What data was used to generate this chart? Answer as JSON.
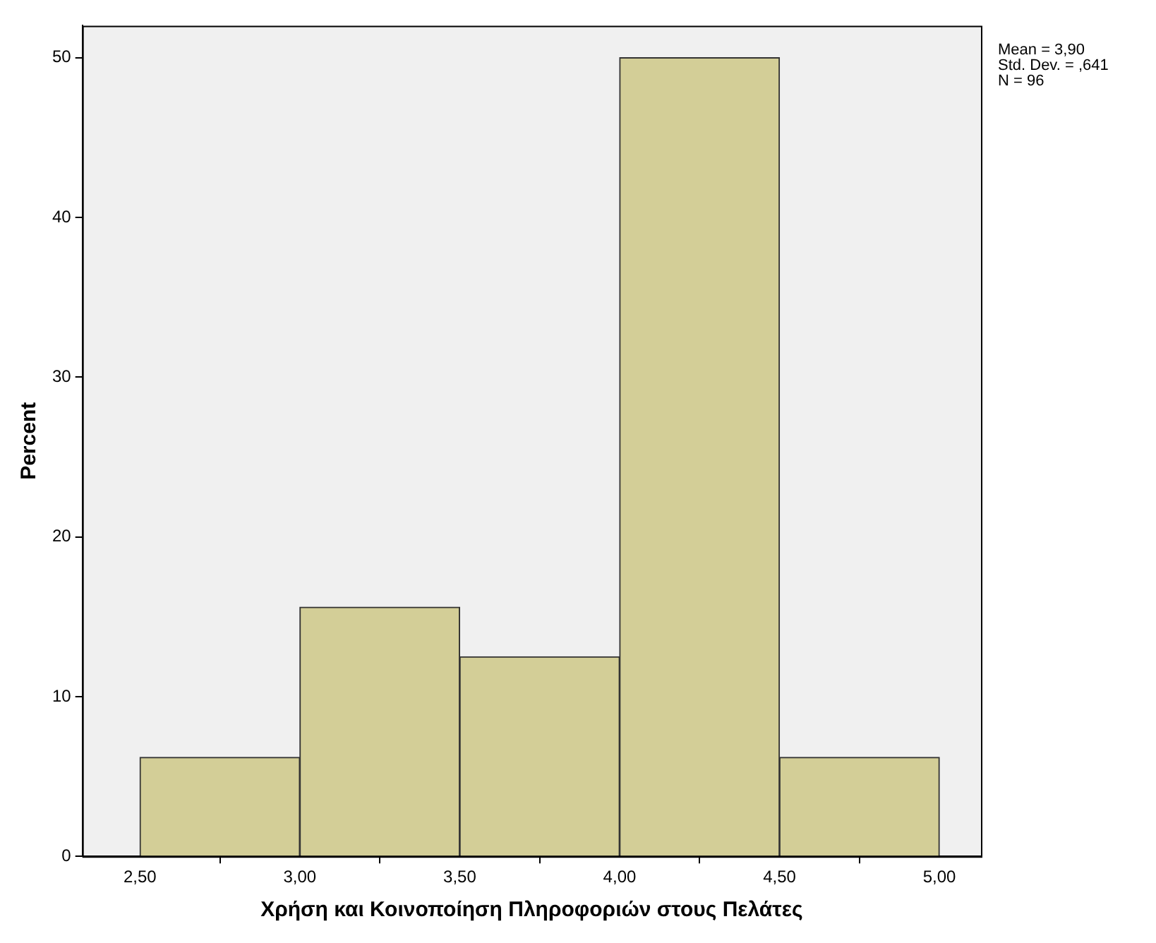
{
  "chart_data": {
    "type": "histogram",
    "xlabel": "Χρήση και Κοινοποίηση Πληροφοριών στους Πελάτες",
    "ylabel": "Percent",
    "bins": [
      2.5,
      3.0,
      3.5,
      4.0,
      4.5,
      5.0
    ],
    "values": [
      6.2,
      15.6,
      12.5,
      50,
      6.2
    ],
    "color": "#d3ce97",
    "xlim": [
      2.32,
      5.13
    ],
    "xticks": [
      {
        "value": 2.5,
        "label": "2,50"
      },
      {
        "value": 3.0,
        "label": "3,00"
      },
      {
        "value": 3.5,
        "label": "3,50"
      },
      {
        "value": 4.0,
        "label": "4,00"
      },
      {
        "value": 4.5,
        "label": "4,50"
      },
      {
        "value": 5.0,
        "label": "5,00"
      }
    ],
    "ylim": [
      0,
      52
    ],
    "yticks": [
      0,
      10,
      20,
      30,
      40,
      50
    ],
    "grid": false,
    "legend": false,
    "annotations": [
      "Mean = 3,90",
      "Std. Dev. = ,641",
      "N = 96"
    ]
  }
}
